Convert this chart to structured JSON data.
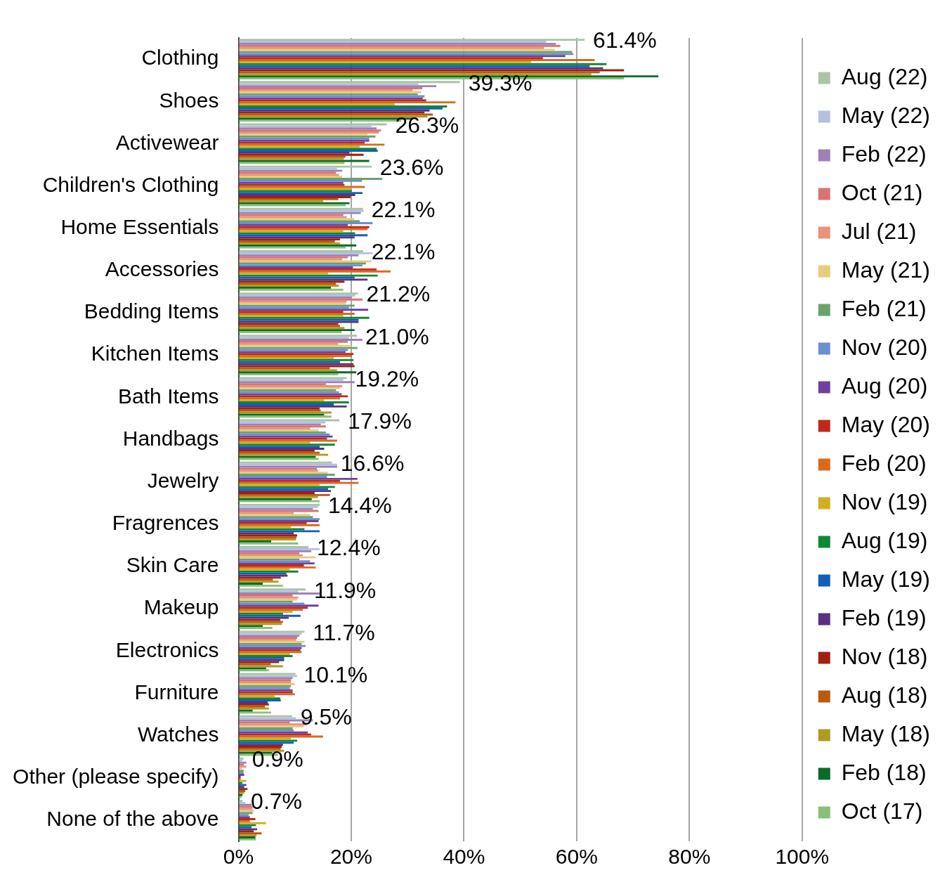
{
  "chart_data": {
    "type": "bar",
    "orientation": "horizontal",
    "categories": [
      "Clothing",
      "Shoes",
      "Activewear",
      "Children's Clothing",
      "Home Essentials",
      "Accessories",
      "Bedding Items",
      "Kitchen Items",
      "Bath Items",
      "Handbags",
      "Jewelry",
      "Fragrences",
      "Skin Care",
      "Makeup",
      "Electronics",
      "Furniture",
      "Watches",
      "Other (please specify)",
      "None of the above"
    ],
    "xlim": [
      0,
      100
    ],
    "xticks": [
      {
        "value": 0,
        "label": "0%"
      },
      {
        "value": 20,
        "label": "20%"
      },
      {
        "value": 40,
        "label": "40%"
      },
      {
        "value": 60,
        "label": "60%"
      },
      {
        "value": 80,
        "label": "80%"
      },
      {
        "value": 100,
        "label": "100%"
      }
    ],
    "grid": "x",
    "legend": "right",
    "series": [
      {
        "name": "Aug (22)",
        "color": "#a9c4a7",
        "values": [
          61.4,
          39.3,
          26.3,
          23.6,
          22.1,
          22.1,
          21.2,
          21.0,
          19.2,
          17.9,
          16.6,
          14.4,
          12.4,
          11.9,
          11.7,
          10.1,
          9.5,
          0.9,
          0.7
        ],
        "value_labels": [
          "61.4%",
          "39.3%",
          "26.3%",
          "23.6%",
          "22.1%",
          "22.1%",
          "21.2%",
          "21.0%",
          "19.2%",
          "17.9%",
          "16.6%",
          "14.4%",
          "12.4%",
          "11.9%",
          "11.7%",
          "10.1%",
          "9.5%",
          "0.9%",
          "0.7%"
        ]
      },
      {
        "name": "May (22)",
        "color": "#b4c0e0",
        "values": [
          54.6,
          31.9,
          23.6,
          17.5,
          22.2,
          23.8,
          20.7,
          19.6,
          18.6,
          15.4,
          17.5,
          14.1,
          14.4,
          10.6,
          11.2,
          10.4,
          10.2,
          0.7,
          1.2
        ]
      },
      {
        "name": "Feb (22)",
        "color": "#9e80b8",
        "values": [
          56.3,
          35.1,
          24.5,
          18.4,
          21.7,
          21.3,
          20.1,
          22.0,
          20.6,
          14.6,
          17.5,
          13.2,
          12.9,
          14.4,
          10.8,
          9.6,
          13.2,
          1.4,
          2.3
        ]
      },
      {
        "name": "Oct (21)",
        "color": "#d87474",
        "values": [
          57.1,
          32.6,
          25.3,
          17.3,
          18.6,
          19.4,
          22.0,
          19.4,
          15.5,
          15.5,
          13.9,
          14.2,
          10.8,
          9.6,
          10.4,
          9.3,
          9.1,
          1.0,
          2.5
        ]
      },
      {
        "name": "Jul (21)",
        "color": "#e8937a",
        "values": [
          54.2,
          30.9,
          24.9,
          17.8,
          19.2,
          18.4,
          19.2,
          17.7,
          18.4,
          12.7,
          14.1,
          9.8,
          11.4,
          10.6,
          10.2,
          9.3,
          12.1,
          1.4,
          2.5
        ]
      },
      {
        "name": "May (21)",
        "color": "#e8cc7a",
        "values": [
          56.1,
          32.4,
          22.9,
          18.4,
          20.5,
          23.6,
          19.0,
          20.0,
          18.0,
          14.2,
          15.8,
          12.7,
          13.7,
          10.4,
          11.7,
          10.0,
          11.6,
          0.6,
          2.7
        ]
      },
      {
        "name": "Feb (21)",
        "color": "#6aa26a",
        "values": [
          59.2,
          31.8,
          24.3,
          25.5,
          21.5,
          22.6,
          20.6,
          21.1,
          17.3,
          15.5,
          17.1,
          13.2,
          10.8,
          9.6,
          11.2,
          9.3,
          9.6,
          0.9,
          2.5
        ]
      },
      {
        "name": "Nov (20)",
        "color": "#6b8fd0",
        "values": [
          59.4,
          33.0,
          23.2,
          21.9,
          23.8,
          22.0,
          19.6,
          19.4,
          17.8,
          16.2,
          15.7,
          14.4,
          12.7,
          11.7,
          11.9,
          9.1,
          9.8,
          0.9,
          1.8
        ]
      },
      {
        "name": "Aug (20)",
        "color": "#7040a0",
        "values": [
          58.0,
          32.7,
          23.2,
          18.6,
          19.4,
          20.3,
          23.0,
          19.0,
          18.3,
          16.7,
          21.1,
          14.2,
          13.5,
          14.2,
          11.2,
          9.6,
          12.3,
          1.0,
          2.0
        ]
      },
      {
        "name": "May (20)",
        "color": "#c0281a",
        "values": [
          54.0,
          33.3,
          22.4,
          18.8,
          23.2,
          24.5,
          18.6,
          20.4,
          19.4,
          15.7,
          18.0,
          12.1,
          11.6,
          12.3,
          11.0,
          9.6,
          12.9,
          0.4,
          3.0
        ]
      },
      {
        "name": "Feb (20)",
        "color": "#d86a1a",
        "values": [
          63.2,
          38.5,
          25.9,
          22.4,
          22.9,
          27.0,
          20.6,
          20.1,
          18.0,
          17.5,
          21.3,
          14.4,
          13.7,
          11.4,
          11.2,
          10.0,
          15.0,
          0.4,
          2.0
        ]
      },
      {
        "name": "Nov (19)",
        "color": "#d0b020",
        "values": [
          51.9,
          27.7,
          21.5,
          20.0,
          18.6,
          15.9,
          18.6,
          16.9,
          15.2,
          12.7,
          14.4,
          9.3,
          9.1,
          9.6,
          9.1,
          6.4,
          9.3,
          1.4,
          4.9
        ]
      },
      {
        "name": "Aug (19)",
        "color": "#108838",
        "values": [
          65.3,
          37.0,
          24.5,
          20.1,
          20.7,
          24.7,
          23.2,
          20.4,
          19.6,
          17.1,
          17.1,
          11.7,
          10.6,
          7.9,
          9.6,
          7.4,
          10.4,
          0.7,
          3.1
        ]
      },
      {
        "name": "May (19)",
        "color": "#1060b8",
        "values": [
          62.3,
          36.2,
          24.7,
          22.0,
          22.9,
          20.6,
          21.3,
          18.0,
          16.9,
          14.4,
          15.9,
          14.4,
          8.5,
          11.0,
          8.1,
          7.5,
          9.8,
          1.4,
          2.3
        ]
      },
      {
        "name": "Feb (19)",
        "color": "#5a3080",
        "values": [
          64.7,
          33.9,
          19.7,
          20.7,
          20.6,
          22.9,
          21.3,
          20.4,
          19.2,
          15.2,
          16.4,
          9.8,
          8.7,
          8.9,
          8.1,
          5.2,
          7.9,
          1.0,
          3.3
        ]
      },
      {
        "name": "Nov (18)",
        "color": "#a02010",
        "values": [
          68.4,
          33.0,
          22.2,
          19.9,
          18.0,
          18.8,
          17.7,
          20.6,
          14.4,
          13.5,
          13.5,
          10.4,
          7.5,
          7.4,
          7.2,
          5.4,
          7.7,
          1.6,
          2.7
        ]
      },
      {
        "name": "Aug (18)",
        "color": "#b85a10",
        "values": [
          64.1,
          34.5,
          19.0,
          17.7,
          17.1,
          17.3,
          18.0,
          16.2,
          14.6,
          14.4,
          16.2,
          10.3,
          6.1,
          7.9,
          5.7,
          4.7,
          7.5,
          1.2,
          4.1
        ]
      },
      {
        "name": "May (18)",
        "color": "#b09a20",
        "values": [
          62.6,
          33.5,
          18.7,
          15.0,
          18.0,
          17.8,
          18.8,
          17.5,
          16.5,
          15.9,
          14.1,
          10.2,
          7.1,
          7.7,
          7.9,
          5.4,
          8.1,
          1.0,
          3.2
        ]
      },
      {
        "name": "Feb (18)",
        "color": "#0a6a28",
        "values": [
          74.5,
          31.0,
          23.2,
          19.7,
          20.9,
          16.4,
          20.6,
          20.9,
          15.2,
          13.7,
          13.0,
          5.8,
          4.3,
          4.3,
          4.9,
          2.5,
          6.0,
          0.7,
          3.0
        ]
      },
      {
        "name": "Oct (17)",
        "color": "#88c078",
        "values": [
          68.4,
          28.9,
          18.8,
          19.0,
          19.0,
          18.6,
          18.3,
          17.7,
          16.5,
          14.2,
          14.4,
          10.6,
          7.9,
          6.0,
          5.4,
          5.8,
          7.0,
          0.5,
          3.1
        ]
      }
    ]
  }
}
